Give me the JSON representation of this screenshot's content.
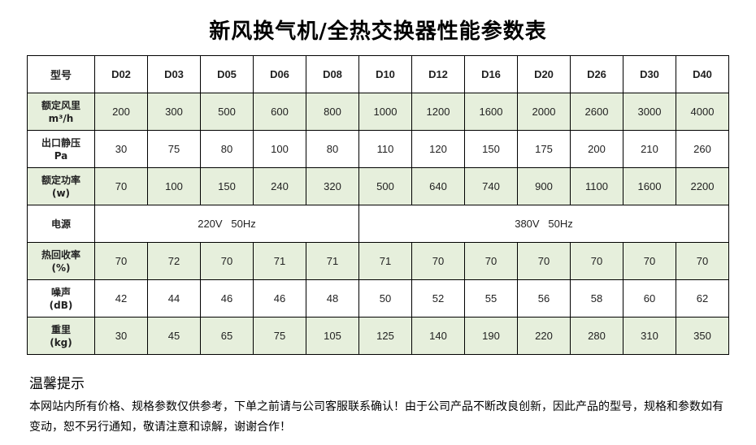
{
  "title": "新风换气机/全热交换器性能参数表",
  "header": {
    "label": "型号",
    "models": [
      "D02",
      "D03",
      "D05",
      "D06",
      "D08",
      "D10",
      "D12",
      "D16",
      "D20",
      "D26",
      "D30",
      "D40"
    ]
  },
  "rows": [
    {
      "l1": "额定风里",
      "l2": "m³/h",
      "values": [
        "200",
        "300",
        "500",
        "600",
        "800",
        "1000",
        "1200",
        "1600",
        "2000",
        "2600",
        "3000",
        "4000"
      ]
    },
    {
      "l1": "出口静压",
      "l2": "Pa",
      "values": [
        "30",
        "75",
        "80",
        "100",
        "80",
        "110",
        "120",
        "150",
        "175",
        "200",
        "210",
        "260"
      ]
    },
    {
      "l1": "额定功率",
      "l2": "(w)",
      "values": [
        "70",
        "100",
        "150",
        "240",
        "320",
        "500",
        "640",
        "740",
        "900",
        "1100",
        "1600",
        "2200"
      ]
    }
  ],
  "power": {
    "label": "电源",
    "v1": "220V   50Hz",
    "v2": "380V   50Hz"
  },
  "rows2": [
    {
      "l1": "热回收率",
      "l2": "(%)",
      "values": [
        "70",
        "72",
        "70",
        "71",
        "71",
        "71",
        "70",
        "70",
        "70",
        "70",
        "70",
        "70"
      ]
    },
    {
      "l1": "噪声",
      "l2": "(dB)",
      "values": [
        "42",
        "44",
        "46",
        "46",
        "48",
        "50",
        "52",
        "55",
        "56",
        "58",
        "60",
        "62"
      ]
    },
    {
      "l1": "重里",
      "l2": "(kg)",
      "values": [
        "30",
        "45",
        "65",
        "75",
        "105",
        "125",
        "140",
        "190",
        "220",
        "280",
        "310",
        "350"
      ]
    }
  ],
  "tips": {
    "title": "温馨提示",
    "text": "本网站内所有价格、规格参数仅供参考，下单之前请与公司客服联系确认！由于公司产品不断改良创新，因此产品的型号，规格和参数如有变动，恕不另行通知，敬请注意和谅解，谢谢合作！"
  },
  "colors": {
    "green_row": "#e6efdc"
  }
}
